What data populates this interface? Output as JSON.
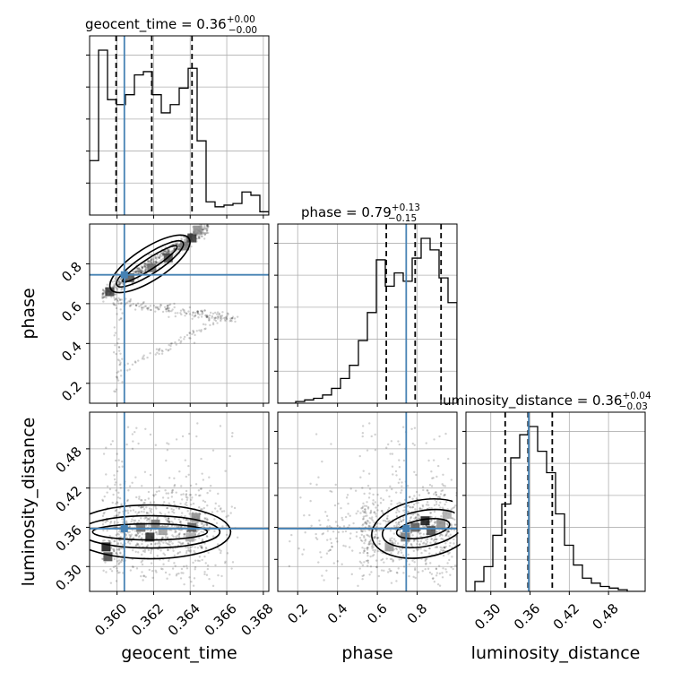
{
  "chart_data": {
    "type": "corner",
    "parameters": [
      "geocent_time",
      "phase",
      "luminosity_distance"
    ],
    "titles": [
      {
        "param": "geocent_time",
        "text": "geocent_time = 0.36",
        "upper": "+0.00",
        "lower": "−0.00"
      },
      {
        "param": "phase",
        "text": "phase = 0.79",
        "upper": "+0.13",
        "lower": "−0.15"
      },
      {
        "param": "luminosity_distance",
        "text": "luminosity_distance = 0.36",
        "upper": "+0.04",
        "lower": "−0.03"
      }
    ],
    "ranges": {
      "geocent_time": [
        0.3585,
        0.3683
      ],
      "phase": [
        0.1,
        1.0
      ],
      "luminosity_distance": [
        0.262,
        0.536
      ]
    },
    "ticks": {
      "geocent_time": [
        0.36,
        0.362,
        0.364,
        0.366,
        0.368
      ],
      "geocent_time_labels": [
        "0.360",
        "0.362",
        "0.364",
        "0.366",
        "0.368"
      ],
      "phase": [
        0.2,
        0.4,
        0.6,
        0.8
      ],
      "phase_labels": [
        "0.2",
        "0.4",
        "0.6",
        "0.8"
      ],
      "luminosity_distance": [
        0.3,
        0.36,
        0.42,
        0.48
      ],
      "luminosity_distance_labels": [
        "0.30",
        "0.36",
        "0.42",
        "0.48"
      ]
    },
    "truths": {
      "geocent_time": 0.3604,
      "phase": 0.745,
      "luminosity_distance": 0.358
    },
    "quantiles": {
      "geocent_time": [
        0.35995,
        0.3619,
        0.3641
      ],
      "phase": [
        0.645,
        0.79,
        0.92
      ],
      "luminosity_distance": [
        0.322,
        0.357,
        0.394
      ]
    },
    "histograms": {
      "geocent_time": {
        "edges": [
          0.3585,
          0.35899,
          0.35948,
          0.35997,
          0.36046,
          0.36095,
          0.36144,
          0.36193,
          0.36242,
          0.36291,
          0.3634,
          0.36389,
          0.36438,
          0.36487,
          0.36536,
          0.36585,
          0.36634,
          0.36683,
          0.36732,
          0.36781,
          0.3683
        ],
        "counts": [
          0.33,
          1.0,
          0.7,
          0.67,
          0.73,
          0.85,
          0.87,
          0.73,
          0.62,
          0.67,
          0.77,
          0.89,
          0.45,
          0.08,
          0.05,
          0.06,
          0.07,
          0.14,
          0.12,
          0.02
        ]
      },
      "phase": {
        "edges": [
          0.1,
          0.145,
          0.19,
          0.235,
          0.28,
          0.325,
          0.37,
          0.415,
          0.46,
          0.505,
          0.55,
          0.595,
          0.64,
          0.685,
          0.73,
          0.775,
          0.82,
          0.865,
          0.91,
          0.955,
          1.0
        ],
        "counts": [
          0.0,
          0.0,
          0.01,
          0.02,
          0.03,
          0.05,
          0.09,
          0.15,
          0.23,
          0.38,
          0.55,
          0.87,
          0.71,
          0.79,
          0.74,
          0.88,
          1.0,
          0.93,
          0.76,
          0.61
        ]
      },
      "luminosity_distance": {
        "edges": [
          0.262,
          0.2757,
          0.2894,
          0.3031,
          0.3168,
          0.3305,
          0.3442,
          0.3579,
          0.3716,
          0.3853,
          0.399,
          0.4127,
          0.4264,
          0.4401,
          0.4538,
          0.4675,
          0.4812,
          0.4949,
          0.5086,
          0.5223,
          0.536
        ],
        "counts": [
          0.0,
          0.06,
          0.15,
          0.34,
          0.53,
          0.81,
          0.95,
          1.0,
          0.85,
          0.72,
          0.47,
          0.28,
          0.16,
          0.08,
          0.05,
          0.03,
          0.02,
          0.01,
          0.0,
          0.0
        ]
      }
    },
    "grid": true,
    "truth_color": "#4682b4"
  }
}
